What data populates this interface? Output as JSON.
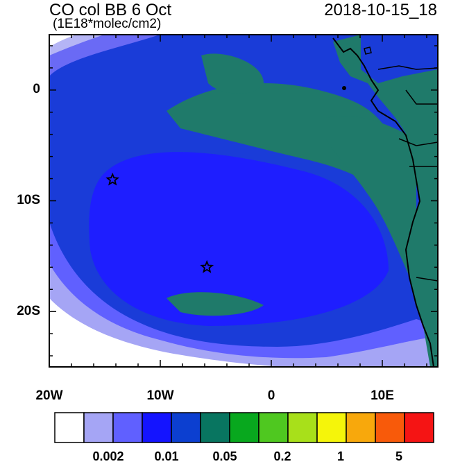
{
  "title": "CO col BB 6 Oct",
  "subtitle": "(1E18*molec/cm2)",
  "date": "2018-10-15_18",
  "axes": {
    "lon_ticks": [
      "20W",
      "10W",
      "0",
      "10E"
    ],
    "lat_ticks": [
      "0",
      "10S",
      "20S"
    ]
  },
  "markers": [
    {
      "name": "star-marker-1",
      "lon": -14.3,
      "lat": -8.1
    },
    {
      "name": "star-marker-2",
      "lon": -5.8,
      "lat": -16.0
    }
  ],
  "colorbar": {
    "colors": [
      "#ffffff",
      "#a5a5f5",
      "#6060ff",
      "#1414ff",
      "#0c3fd0",
      "#087560",
      "#08a81e",
      "#4fc820",
      "#a8e01a",
      "#f5f50a",
      "#f8a80c",
      "#f85a0a",
      "#f51414"
    ],
    "labels": [
      "0.002",
      "0.01",
      "0.05",
      "0.2",
      "1",
      "5"
    ]
  },
  "palette": {
    "ocean_low": "#1c3fe8",
    "ocean_mid": "#2b2bff",
    "plume": "#1f7a6a",
    "light": "#6a6af5",
    "lightest": "#b5b5f5"
  }
}
